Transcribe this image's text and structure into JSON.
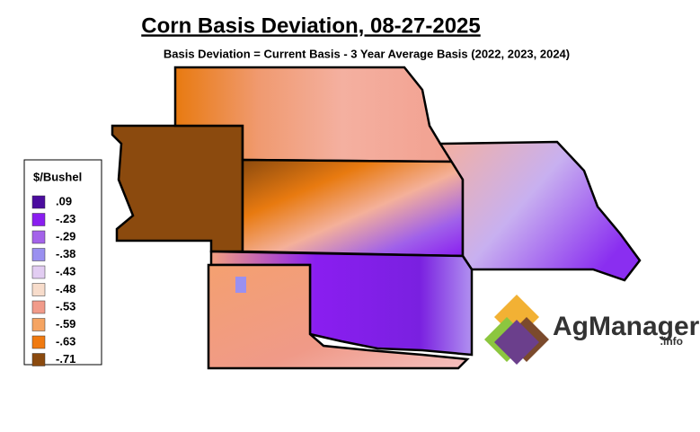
{
  "header": {
    "title": "Corn Basis Deviation, 08-27-2025",
    "subtitle": "Basis Deviation = Current Basis - 3 Year Average Basis (2022, 2023, 2024)"
  },
  "legend": {
    "title": "$/Bushel",
    "items": [
      {
        "label": ".09",
        "color": "#4b0c9e"
      },
      {
        "label": "-.23",
        "color": "#8a1ef0"
      },
      {
        "label": "-.29",
        "color": "#a463ea"
      },
      {
        "label": "-.38",
        "color": "#9a90f0"
      },
      {
        "label": "-.43",
        "color": "#e2cdf2"
      },
      {
        "label": "-.48",
        "color": "#f7dccb"
      },
      {
        "label": "-.53",
        "color": "#f19b8a"
      },
      {
        "label": "-.59",
        "color": "#f5a462"
      },
      {
        "label": "-.63",
        "color": "#f07a10"
      },
      {
        "label": "-.71",
        "color": "#8b4a0e"
      }
    ]
  },
  "logo": {
    "name": "AgManager",
    "suffix": ".info"
  }
}
